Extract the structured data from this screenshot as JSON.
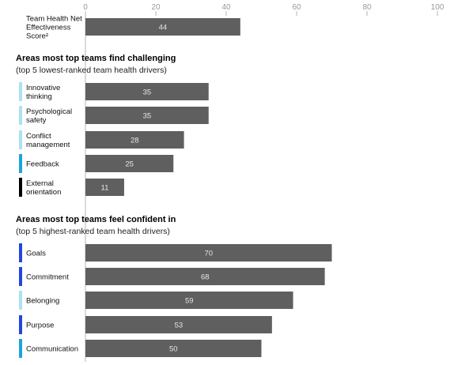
{
  "chart_data": {
    "type": "bar",
    "orientation": "horizontal",
    "xlim": [
      0,
      100
    ],
    "ticks": [
      0,
      20,
      40,
      60,
      80,
      100
    ],
    "bar_color": "#5f5f5f",
    "groups": [
      {
        "title": "",
        "subtitle": "",
        "rows": [
          {
            "label": [
              "Team Health Net",
              "Effectiveness",
              "Score²"
            ],
            "value": 44,
            "marker": null
          }
        ]
      },
      {
        "title": "Areas most top teams find challenging",
        "subtitle": "(top 5 lowest-ranked team health drivers)",
        "rows": [
          {
            "label": [
              "Innovative",
              "thinking"
            ],
            "value": 35,
            "marker": "#a9e2f5"
          },
          {
            "label": [
              "Psychological",
              "safety"
            ],
            "value": 35,
            "marker": "#a9e2f5"
          },
          {
            "label": [
              "Conflict",
              "management"
            ],
            "value": 28,
            "marker": "#a9e2f5"
          },
          {
            "label": [
              "Feedback"
            ],
            "value": 25,
            "marker": "#1aa3e0"
          },
          {
            "label": [
              "External",
              "orientation"
            ],
            "value": 11,
            "marker": "#000000"
          }
        ]
      },
      {
        "title": "Areas most top teams feel confident in",
        "subtitle": "(top 5 highest-ranked team health drivers)",
        "rows": [
          {
            "label": [
              "Goals"
            ],
            "value": 70,
            "marker": "#2146e0"
          },
          {
            "label": [
              "Commitment"
            ],
            "value": 68,
            "marker": "#2146e0"
          },
          {
            "label": [
              "Belonging"
            ],
            "value": 59,
            "marker": "#a9e2f5"
          },
          {
            "label": [
              "Purpose"
            ],
            "value": 53,
            "marker": "#2146e0"
          },
          {
            "label": [
              "Communication"
            ],
            "value": 50,
            "marker": "#1aa3e0"
          }
        ]
      }
    ]
  }
}
